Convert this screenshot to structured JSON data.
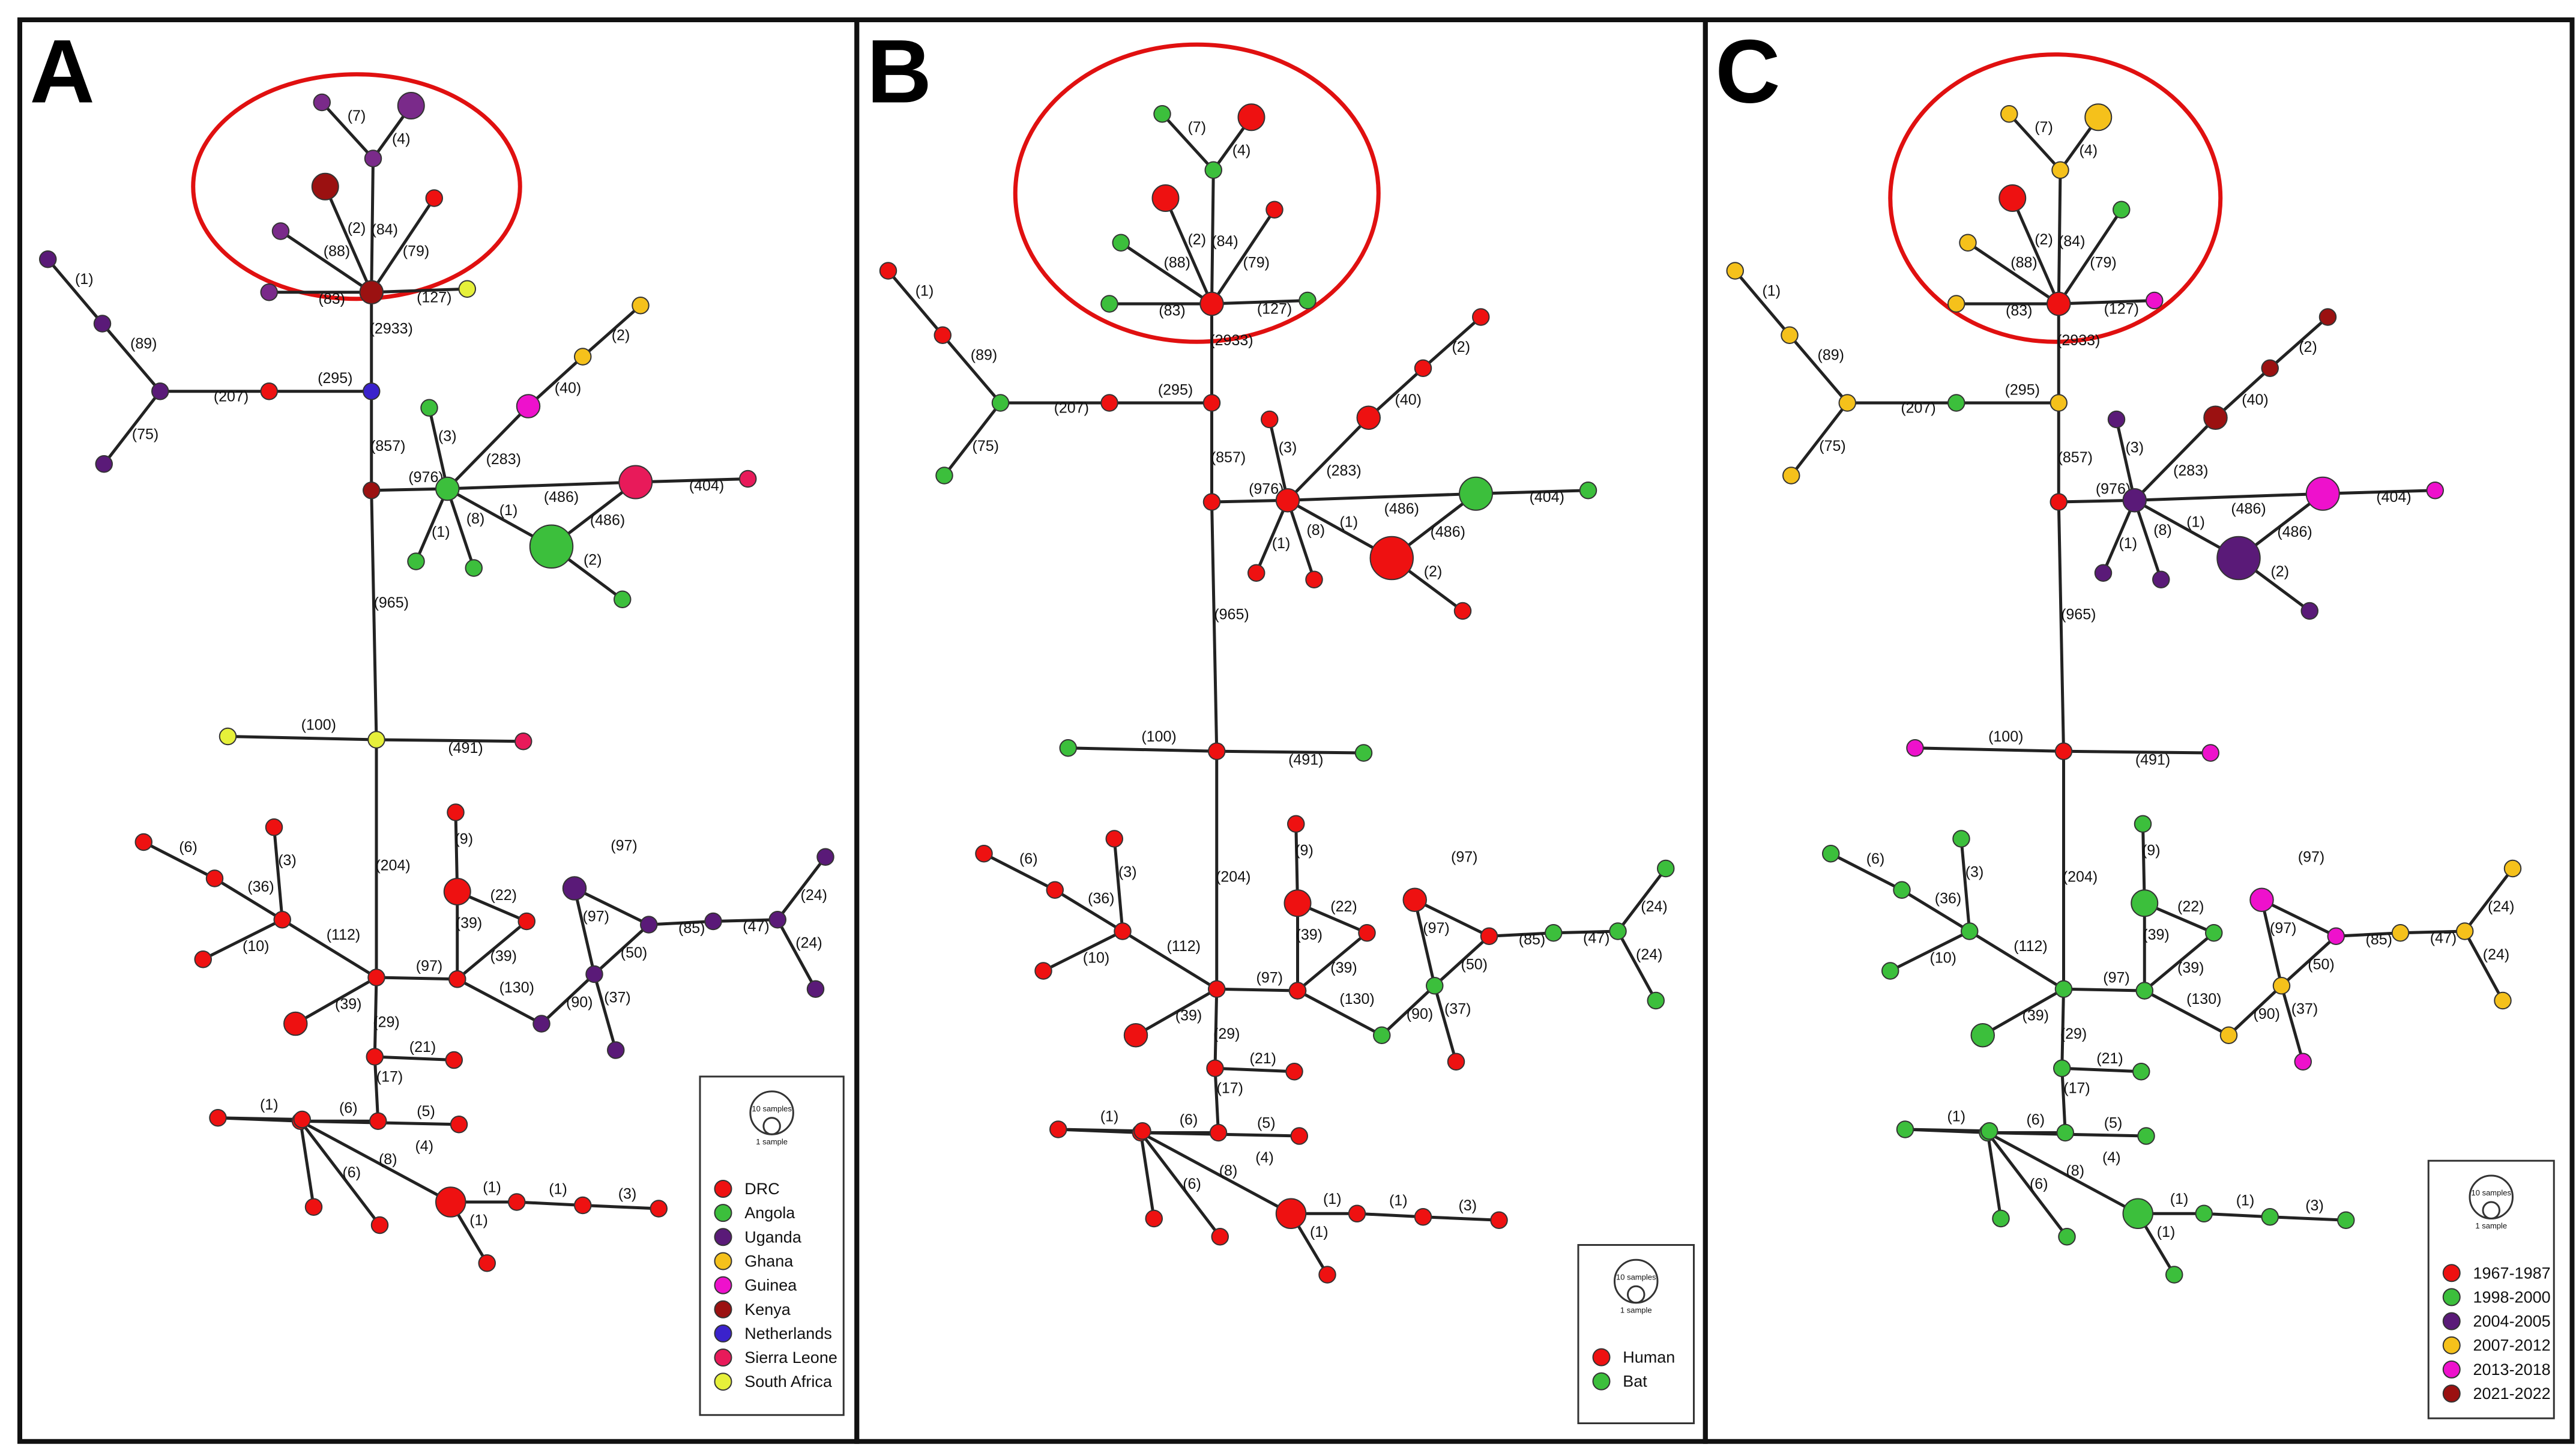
{
  "figure": {
    "panels": [
      {
        "id": "A",
        "letter": "A",
        "legend": {
          "size_key": {
            "large": "10 samples",
            "small": "1 sample"
          },
          "entries": [
            {
              "label": "DRC",
              "color": "#ee1111"
            },
            {
              "label": "Angola",
              "color": "#3cbf3c"
            },
            {
              "label": "Uganda",
              "color": "#5a1a78"
            },
            {
              "label": "Ghana",
              "color": "#f5c11b"
            },
            {
              "label": "Guinea",
              "color": "#ee11cc"
            },
            {
              "label": "Kenya",
              "color": "#9b1111"
            },
            {
              "label": "Netherlands",
              "color": "#3a22cc"
            },
            {
              "label": "Sierra Leone",
              "color": "#e81a5a"
            },
            {
              "label": "South Africa",
              "color": "#e6f03a"
            }
          ]
        },
        "node_colors": {
          "CircleHub": "#9b1111",
          "C7": "#7a2a8a",
          "C4": "#7a2a8a",
          "C4big": "#7a2a8a",
          "C2": "#9b1111",
          "C84": "#ee1111",
          "C88": "#7a2a8a",
          "C83": "#7a2a8a",
          "C127": "#e6f03a",
          "N295": "#3a22cc",
          "N857": "#9b1111",
          "N965": "#e6f03a",
          "L207": "#ee1111",
          "L89": "#5a1a78",
          "L1": "#5a1a78",
          "L1b": "#5a1a78",
          "L75": "#5a1a78",
          "H976": "#3cbf3c",
          "H3": "#3cbf3c",
          "H1": "#3cbf3c",
          "H8": "#3cbf3c",
          "HBig": "#3cbf3c",
          "H2": "#3cbf3c",
          "H40": "#ee11cc",
          "H2b": "#f5c11b",
          "H40b": "#f5c11b",
          "H486": "#e81a5a",
          "H404": "#e81a5a",
          "M100": "#e6f03a",
          "M491": "#e81a5a",
          "S112": "#ee1111",
          "S36": "#ee1111",
          "S6": "#ee1111",
          "S3": "#ee1111",
          "S10": "#ee1111",
          "S39a": "#ee1111",
          "S97": "#ee1111",
          "S39b": "#ee1111",
          "S9": "#ee1111",
          "S9top": "#ee1111",
          "S22": "#ee1111",
          "S39c": "#ee1111",
          "S130": "#5a1a78",
          "S50": "#5a1a78",
          "S97b": "#5a1a78",
          "S97c": "#5a1a78",
          "S85": "#5a1a78",
          "S47": "#5a1a78",
          "S24a": "#5a1a78",
          "S24b": "#5a1a78",
          "S37": "#5a1a78",
          "B29": "#ee1111",
          "B21": "#ee1111",
          "B17": "#ee1111",
          "B6": "#ee1111",
          "B1l": "#ee1111",
          "B1ll": "#ee1111",
          "B5": "#ee1111",
          "B6l": "#ee1111",
          "B8": "#ee1111",
          "B4": "#ee1111",
          "B1a": "#ee1111",
          "B1b": "#ee1111",
          "B3": "#ee1111",
          "B1c": "#ee1111"
        }
      },
      {
        "id": "B",
        "letter": "B",
        "legend": {
          "size_key": {
            "large": "10 samples",
            "small": "1 sample"
          },
          "entries": [
            {
              "label": "Human",
              "color": "#ee1111"
            },
            {
              "label": "Bat",
              "color": "#3cbf3c"
            }
          ]
        },
        "node_colors": {
          "CircleHub": "#ee1111",
          "C7": "#3cbf3c",
          "C4": "#3cbf3c",
          "C4big": "#ee1111",
          "C2": "#ee1111",
          "C84": "#ee1111",
          "C88": "#3cbf3c",
          "C83": "#3cbf3c",
          "C127": "#3cbf3c",
          "N295": "#ee1111",
          "N857": "#ee1111",
          "N965": "#ee1111",
          "L207": "#ee1111",
          "L89": "#3cbf3c",
          "L1": "#ee1111",
          "L1b": "#ee1111",
          "L75": "#3cbf3c",
          "H976": "#ee1111",
          "H3": "#ee1111",
          "H1": "#ee1111",
          "H8": "#ee1111",
          "HBig": "#ee1111",
          "H2": "#ee1111",
          "H40": "#ee1111",
          "H2b": "#ee1111",
          "H40b": "#ee1111",
          "H486": "#3cbf3c",
          "H404": "#3cbf3c",
          "M100": "#3cbf3c",
          "M491": "#3cbf3c",
          "S112": "#ee1111",
          "S36": "#ee1111",
          "S6": "#ee1111",
          "S3": "#ee1111",
          "S10": "#ee1111",
          "S39a": "#ee1111",
          "S97": "#ee1111",
          "S39b": "#ee1111",
          "S9": "#ee1111",
          "S9top": "#ee1111",
          "S22": "#ee1111",
          "S39c": "#ee1111",
          "S130": "#3cbf3c",
          "S50": "#3cbf3c",
          "S97b": "#ee1111",
          "S97c": "#ee1111",
          "S85": "#3cbf3c",
          "S47": "#3cbf3c",
          "S24a": "#3cbf3c",
          "S24b": "#3cbf3c",
          "S37": "#ee1111",
          "B29": "#ee1111",
          "B21": "#ee1111",
          "B17": "#ee1111",
          "B6": "#ee1111",
          "B1l": "#ee1111",
          "B1ll": "#ee1111",
          "B5": "#ee1111",
          "B6l": "#ee1111",
          "B8": "#ee1111",
          "B4": "#ee1111",
          "B1a": "#ee1111",
          "B1b": "#ee1111",
          "B3": "#ee1111",
          "B1c": "#ee1111"
        }
      },
      {
        "id": "C",
        "letter": "C",
        "legend": {
          "size_key": {
            "large": "10 samples",
            "small": "1 sample"
          },
          "entries": [
            {
              "label": "1967-1987",
              "color": "#ee1111"
            },
            {
              "label": "1998-2000",
              "color": "#3cbf3c"
            },
            {
              "label": "2004-2005",
              "color": "#5a1a78"
            },
            {
              "label": "2007-2012",
              "color": "#f5c11b"
            },
            {
              "label": "2013-2018",
              "color": "#ee11cc"
            },
            {
              "label": "2021-2022",
              "color": "#9b1111"
            }
          ]
        },
        "node_colors": {
          "CircleHub": "#ee1111",
          "C7": "#f5c11b",
          "C4": "#f5c11b",
          "C4big": "#f5c11b",
          "C2": "#ee1111",
          "C84": "#3cbf3c",
          "C88": "#f5c11b",
          "C83": "#f5c11b",
          "C127": "#ee11cc",
          "N295": "#f5c11b",
          "N857": "#ee1111",
          "N965": "#ee1111",
          "L207": "#3cbf3c",
          "L89": "#f5c11b",
          "L1": "#f5c11b",
          "L1b": "#f5c11b",
          "L75": "#f5c11b",
          "H976": "#5a1a78",
          "H3": "#5a1a78",
          "H1": "#5a1a78",
          "H8": "#5a1a78",
          "HBig": "#5a1a78",
          "H2": "#5a1a78",
          "H40": "#9b1111",
          "H2b": "#9b1111",
          "H40b": "#9b1111",
          "H486": "#ee11cc",
          "H404": "#ee11cc",
          "M100": "#ee11cc",
          "M491": "#ee11cc",
          "S112": "#3cbf3c",
          "S36": "#3cbf3c",
          "S6": "#3cbf3c",
          "S3": "#3cbf3c",
          "S10": "#3cbf3c",
          "S39a": "#3cbf3c",
          "S97": "#3cbf3c",
          "S39b": "#3cbf3c",
          "S9": "#3cbf3c",
          "S9top": "#3cbf3c",
          "S22": "#3cbf3c",
          "S39c": "#3cbf3c",
          "S130": "#f5c11b",
          "S50": "#f5c11b",
          "S97b": "#ee11cc",
          "S97c": "#ee11cc",
          "S85": "#f5c11b",
          "S47": "#f5c11b",
          "S24a": "#f5c11b",
          "S24b": "#f5c11b",
          "S37": "#ee11cc",
          "B29": "#3cbf3c",
          "B21": "#3cbf3c",
          "B17": "#3cbf3c",
          "B6": "#3cbf3c",
          "B1l": "#3cbf3c",
          "B1ll": "#3cbf3c",
          "B5": "#3cbf3c",
          "B6l": "#3cbf3c",
          "B8": "#3cbf3c",
          "B4": "#3cbf3c",
          "B1a": "#3cbf3c",
          "B1b": "#3cbf3c",
          "B3": "#3cbf3c",
          "B1c": "#3cbf3c"
        }
      }
    ],
    "edge_labels": {
      "C7": "(7)",
      "C4": "(4)",
      "C2": "(2)",
      "C84": "(84)",
      "C88": "(88)",
      "C79": "(79)",
      "C83": "(83)",
      "C127": "(127)",
      "C2933": "(2933)",
      "L295": "(295)",
      "L207": "(207)",
      "L89": "(89)",
      "L1": "(1)",
      "L75": "(75)",
      "L857": "(857)",
      "H976": "(976)",
      "H3": "(3)",
      "H283": "(283)",
      "H40": "(40)",
      "H2b": "(2)",
      "H486a": "(486)",
      "H404": "(404)",
      "H1": "(1)",
      "H8": "(8)",
      "H1b": "(1)",
      "H486b": "(486)",
      "H2": "(2)",
      "M965": "(965)",
      "M100": "(100)",
      "M491": "(491)",
      "S204": "(204)",
      "S112": "(112)",
      "S36": "(36)",
      "S6": "(6)",
      "S3": "(3)",
      "S10": "(10)",
      "S39a": "(39)",
      "S97": "(97)",
      "S9": "(9)",
      "S22": "(22)",
      "S39b": "(39)",
      "S39c": "(39)",
      "S130": "(130)",
      "S97b": "(97)",
      "S97c": "(97)",
      "S50": "(50)",
      "S85": "(85)",
      "S47": "(47)",
      "S24a": "(24)",
      "S24b": "(24)",
      "S90": "(90)",
      "S37": "(37)",
      "B29": "(29)",
      "B21": "(21)",
      "B17": "(17)",
      "B6": "(6)",
      "B5": "(5)",
      "B1l": "(1)",
      "B6l": "(6)",
      "B8": "(8)",
      "B4": "(4)",
      "B1a": "(1)",
      "B1b": "(1)",
      "B3": "(3)",
      "B1c": "(1)"
    }
  }
}
